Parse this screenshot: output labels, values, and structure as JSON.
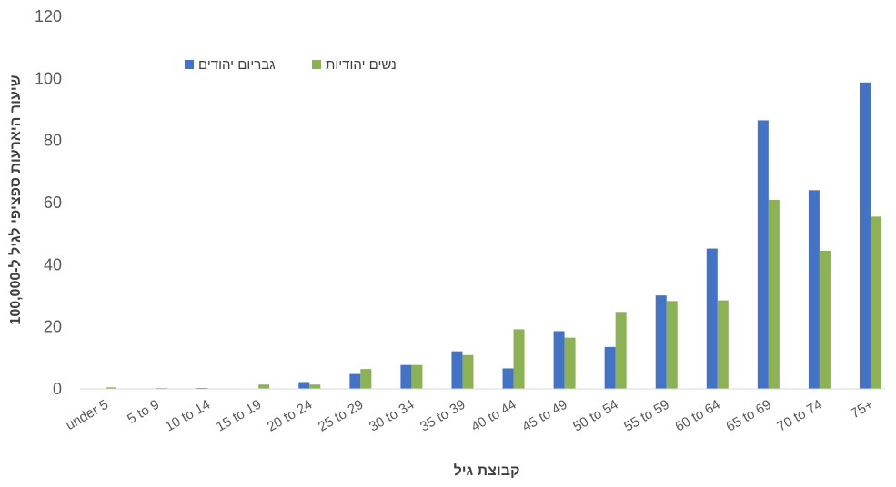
{
  "chart_data": {
    "type": "bar",
    "categories": [
      "under 5",
      "5 to 9",
      "10 to 14",
      "15 to 19",
      "20 to 24",
      "25 to 29",
      "30 to 34",
      "35 to 39",
      "40 to 44",
      "45 to 49",
      "50 to 54",
      "55 to 59",
      "60 to 64",
      "65 to 69",
      "70 to 74",
      "75+"
    ],
    "series": [
      {
        "name": "גבריום יהודים",
        "color": "#4472C4",
        "values": [
          0,
          0,
          0.3,
          0,
          2.2,
          4.8,
          7.7,
          12.1,
          6.6,
          18.6,
          13.5,
          30.1,
          45.2,
          86.5,
          64.0,
          98.7
        ]
      },
      {
        "name": "נשים יהודיות",
        "color": "#8DB255",
        "values": [
          0.5,
          0.3,
          0,
          1.4,
          1.4,
          6.4,
          7.7,
          10.9,
          19.2,
          16.5,
          24.8,
          28.3,
          28.5,
          60.9,
          44.5,
          55.5
        ]
      }
    ],
    "xlabel": "קבוצת גיל",
    "ylabel": "שיעור היארעות ספציפי לגיל ל-100,000",
    "ylim": [
      0,
      120
    ],
    "yticks": [
      0,
      20,
      40,
      60,
      80,
      100,
      120
    ],
    "grid": false,
    "legend_position": "top-left"
  }
}
